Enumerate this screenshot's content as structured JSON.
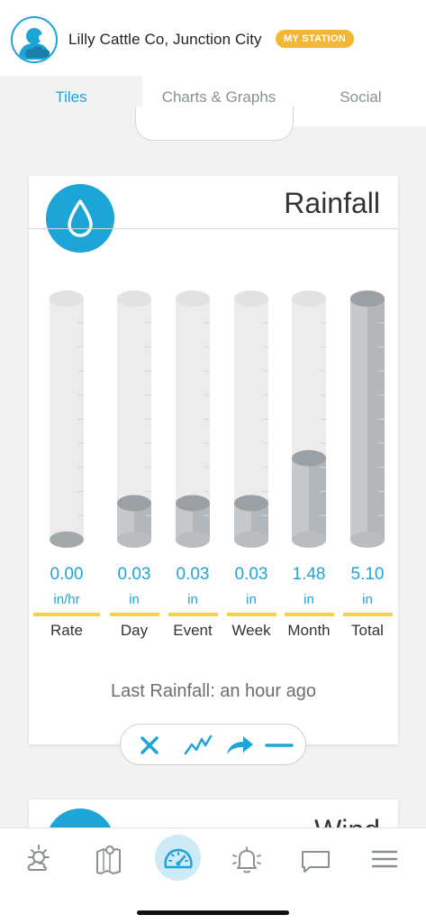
{
  "header": {
    "station_name": "Lilly Cattle Co, Junction City",
    "badge": "MY STATION"
  },
  "tabs": [
    {
      "label": "Tiles",
      "active": true
    },
    {
      "label": "Charts & Graphs",
      "active": false
    },
    {
      "label": "Social",
      "active": false
    }
  ],
  "card": {
    "title": "Rainfall",
    "icon": "raindrop-icon",
    "accent_color": "#1ea5d8",
    "underline_color": "#f5d04e",
    "gauges": [
      {
        "value": "0.00",
        "unit": "in/hr",
        "label": "Rate",
        "fill": 0.0
      },
      {
        "value": "0.03",
        "unit": "in",
        "label": "Day",
        "fill": 0.09
      },
      {
        "value": "0.03",
        "unit": "in",
        "label": "Event",
        "fill": 0.09
      },
      {
        "value": "0.03",
        "unit": "in",
        "label": "Week",
        "fill": 0.09
      },
      {
        "value": "1.48",
        "unit": "in",
        "label": "Month",
        "fill": 0.29
      },
      {
        "value": "5.10",
        "unit": "in",
        "label": "Total",
        "fill": 1.0
      }
    ],
    "last_rainfall": "Last Rainfall: an hour ago",
    "controls": [
      "close-icon",
      "line-chart-icon",
      "share-arrow-icon",
      "minus-icon"
    ]
  },
  "next_card": {
    "title": "Wind"
  },
  "bottom_nav": [
    {
      "icon": "weather-icon",
      "active": false
    },
    {
      "icon": "map-icon",
      "active": false
    },
    {
      "icon": "dashboard-gauge-icon",
      "active": true
    },
    {
      "icon": "bell-icon",
      "active": false
    },
    {
      "icon": "chat-icon",
      "active": false
    },
    {
      "icon": "menu-icon",
      "active": false
    }
  ]
}
